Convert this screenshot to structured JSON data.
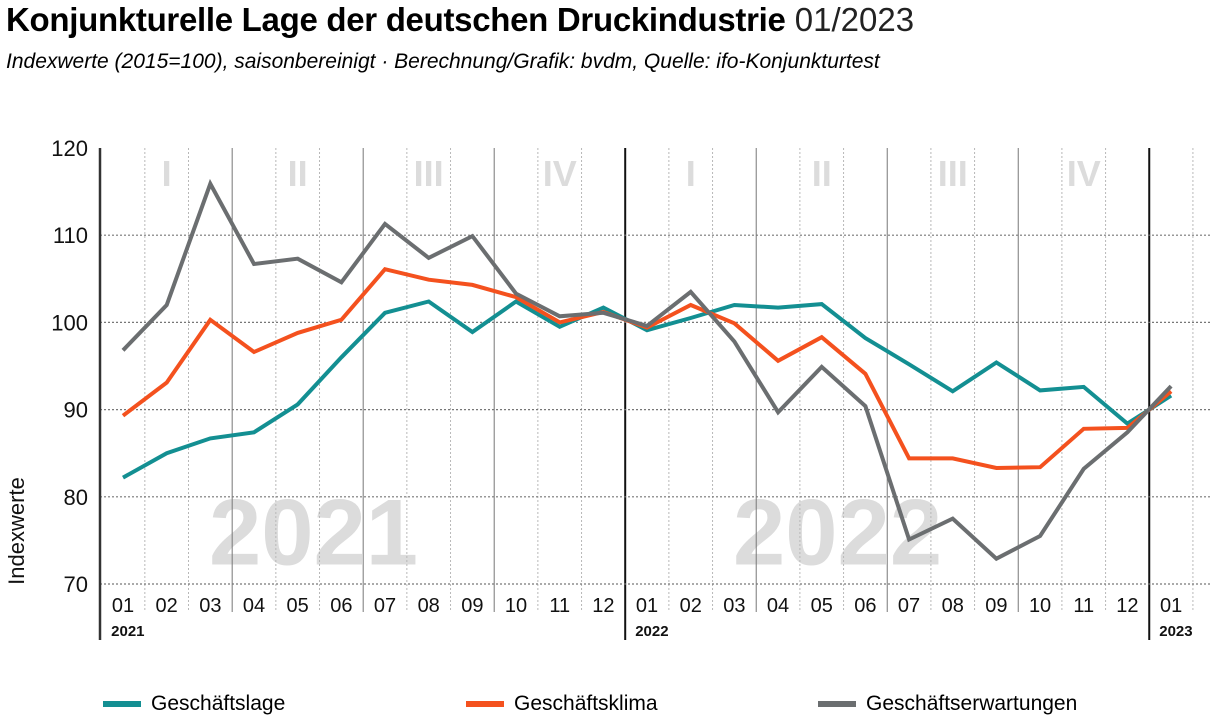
{
  "header": {
    "title_bold": "Konjunkturelle Lage der deutschen Druckindustrie",
    "title_light": "01/2023",
    "subtitle": "Indexwerte (2015=100), saisonbereinigt · Berechnung/Grafik: bvdm, Quelle: ifo-Konjunkturtest"
  },
  "colors": {
    "geschaeftslage": "#138f92",
    "geschaeftsklima": "#f4511e",
    "geschaeftserwartungen": "#6b6e70",
    "watermark": "#dcdcdc",
    "axis": "#333333"
  },
  "chart_data": {
    "type": "line",
    "title": "Konjunkturelle Lage der deutschen Druckindustrie 01/2023",
    "xlabel": "",
    "ylabel": "Indexwerte",
    "ylim": [
      70,
      120
    ],
    "yticks": [
      70,
      80,
      90,
      100,
      110,
      120
    ],
    "grid": true,
    "legend": "bottom",
    "x": [
      "01",
      "02",
      "03",
      "04",
      "05",
      "06",
      "07",
      "08",
      "09",
      "10",
      "11",
      "12",
      "01",
      "02",
      "03",
      "04",
      "05",
      "06",
      "07",
      "08",
      "09",
      "10",
      "11",
      "12",
      "01"
    ],
    "year_labels": [
      {
        "label": "2021",
        "start_index": 0
      },
      {
        "label": "2022",
        "start_index": 12
      },
      {
        "label": "2023",
        "start_index": 24
      }
    ],
    "quarter_labels": [
      {
        "label": "I",
        "start_index": 0
      },
      {
        "label": "II",
        "start_index": 3
      },
      {
        "label": "III",
        "start_index": 6
      },
      {
        "label": "IV",
        "start_index": 9
      },
      {
        "label": "I",
        "start_index": 12
      },
      {
        "label": "II",
        "start_index": 15
      },
      {
        "label": "III",
        "start_index": 18
      },
      {
        "label": "IV",
        "start_index": 21
      }
    ],
    "watermarks": [
      {
        "label": "2021",
        "center_index": 4.5,
        "value": 75
      },
      {
        "label": "2022",
        "center_index": 16.5,
        "value": 75
      }
    ],
    "series": [
      {
        "name": "Geschäftslage",
        "color_key": "geschaeftslage",
        "values": [
          82.2,
          85.0,
          86.7,
          87.4,
          90.6,
          96.0,
          101.1,
          102.4,
          98.9,
          102.4,
          99.5,
          101.7,
          99.1,
          100.5,
          102.0,
          101.7,
          102.1,
          98.2,
          95.2,
          92.1,
          95.4,
          92.2,
          92.6,
          88.4,
          91.6
        ]
      },
      {
        "name": "Geschäftsklima",
        "color_key": "geschaeftsklima",
        "values": [
          89.3,
          93.1,
          100.3,
          96.6,
          98.8,
          100.3,
          106.1,
          104.9,
          104.3,
          102.9,
          100.0,
          101.2,
          99.4,
          102.0,
          99.9,
          95.6,
          98.3,
          94.1,
          84.4,
          84.4,
          83.3,
          83.4,
          87.8,
          87.9,
          92.1
        ]
      },
      {
        "name": "Geschäftserwartungen",
        "color_key": "geschaeftserwartungen",
        "values": [
          96.8,
          102.0,
          115.9,
          106.7,
          107.3,
          104.6,
          111.3,
          107.4,
          109.9,
          103.3,
          100.7,
          101.1,
          99.6,
          103.5,
          97.8,
          89.7,
          94.9,
          90.4,
          75.1,
          77.5,
          72.9,
          75.5,
          83.2,
          87.4,
          92.7
        ]
      }
    ]
  }
}
